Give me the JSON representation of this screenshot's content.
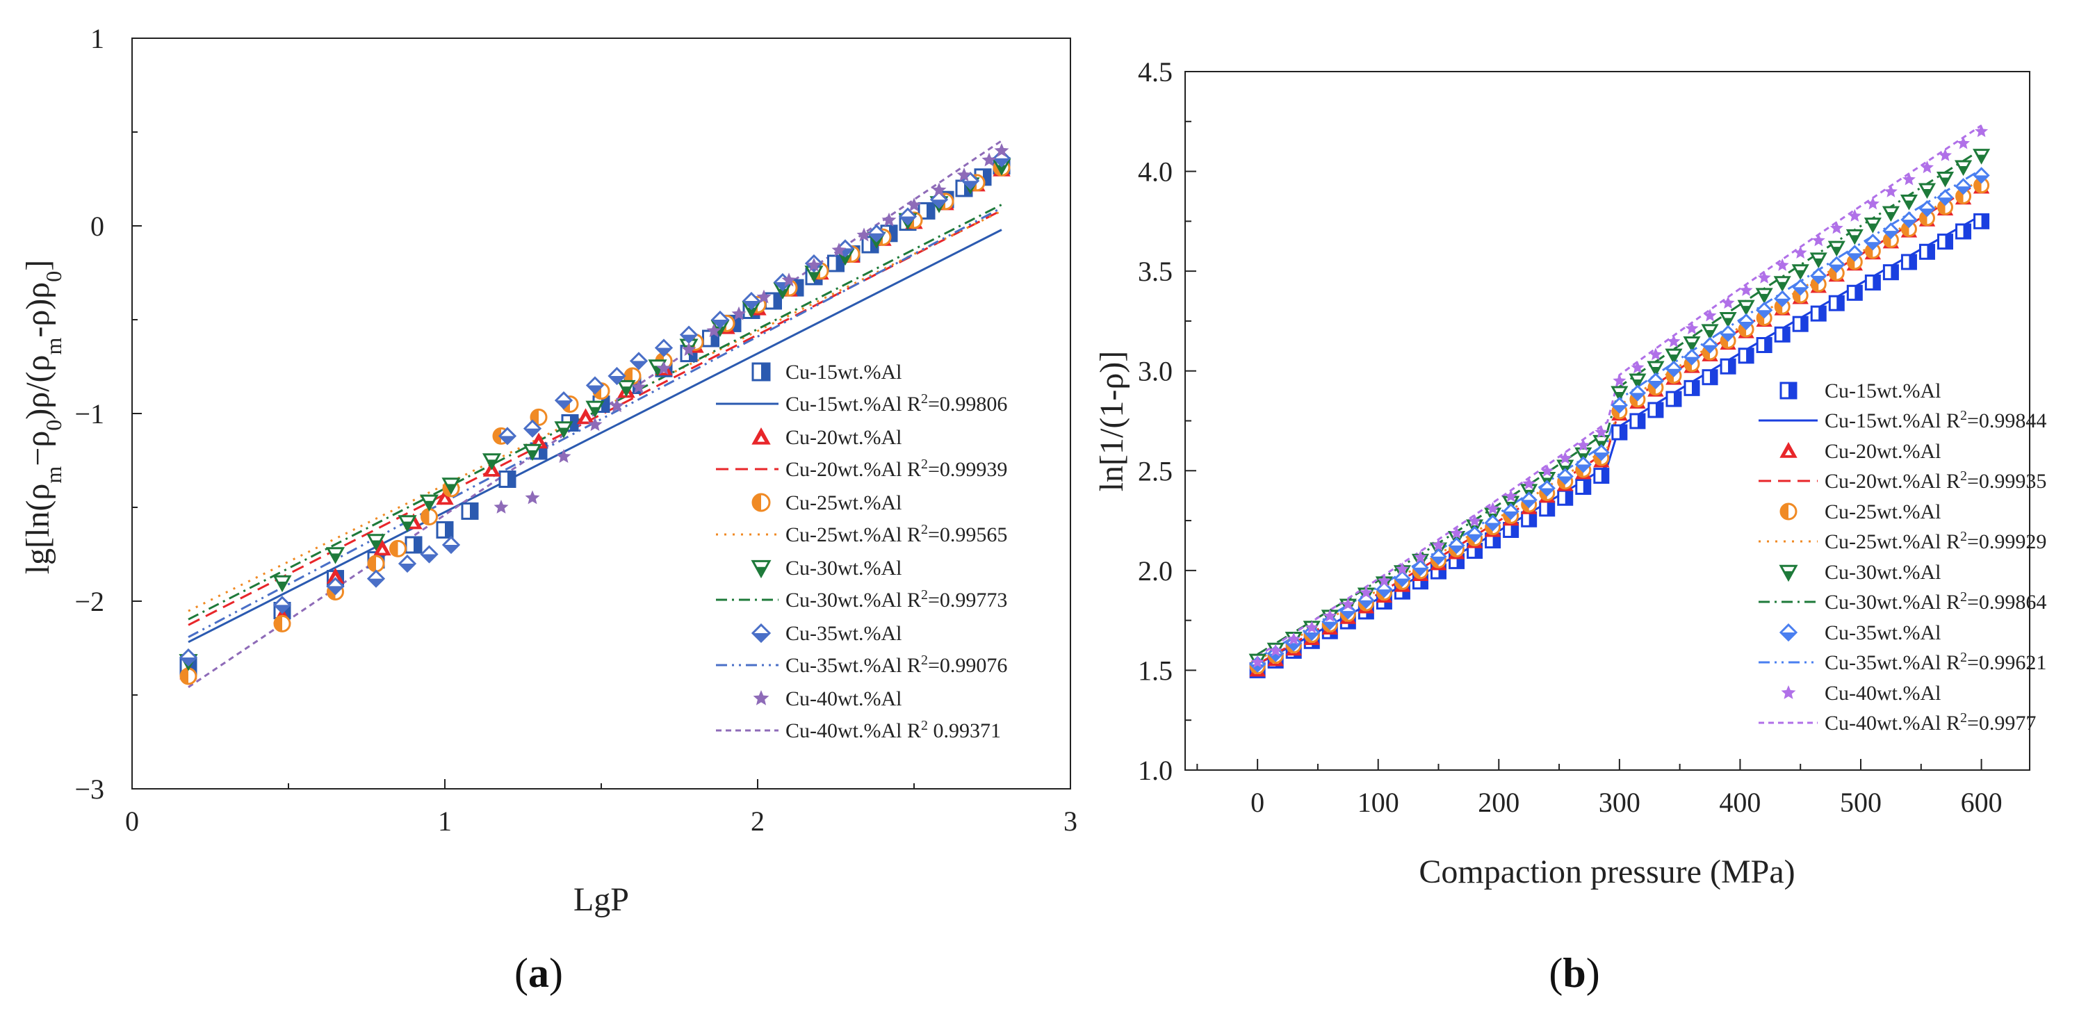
{
  "chart_data": [
    {
      "type": "scatter",
      "panel_label": "a",
      "xlabel": "LgP",
      "ylabel": "lg[ln(ρm−ρ0)ρ/(ρm-ρ)ρ0]",
      "xlim": [
        0,
        3
      ],
      "ylim": [
        -3,
        1
      ],
      "xticks": [
        0,
        1,
        2,
        3
      ],
      "xtick_labels": [
        "0",
        "1",
        "2",
        "3"
      ],
      "yticks": [
        -3,
        -2,
        -1,
        0,
        1
      ],
      "ytick_labels": [
        "−3",
        "−2",
        "−1",
        "0",
        "1"
      ],
      "legend_position": "lower-right",
      "series": [
        {
          "name": "Cu-15wt.%Al",
          "fit_label": "Cu-15wt.%Al R",
          "r2_sep": "=",
          "r2": "0.99806",
          "color": "#2b5ab0",
          "marker": "half-square",
          "dash": "",
          "slope": 0.845,
          "intercept": -2.37,
          "x_start": 0.18,
          "x_end": 2.78
        },
        {
          "name": "Cu-20wt.%Al",
          "fit_label": "Cu-20wt.%Al R",
          "r2_sep": "=",
          "r2": "0.99939",
          "color": "#e8262a",
          "marker": "triangle-up",
          "dash": "18,10",
          "slope": 0.85,
          "intercept": -2.28,
          "x_start": 0.18,
          "x_end": 2.78
        },
        {
          "name": "Cu-25wt.%Al",
          "fit_label": "Cu-25wt.%Al R",
          "r2_sep": "=",
          "r2": "0.99565",
          "color": "#f08a24",
          "marker": "half-circle",
          "dash": "3,9",
          "slope": 0.82,
          "intercept": -2.2,
          "x_start": 0.18,
          "x_end": 2.78
        },
        {
          "name": "Cu-30wt.%Al",
          "fit_label": "Cu-30wt.%Al R",
          "r2_sep": "=",
          "r2": "0.99773",
          "color": "#1e7a3a",
          "marker": "triangle-down",
          "dash": "16,7,3,7",
          "slope": 0.85,
          "intercept": -2.25,
          "x_start": 0.18,
          "x_end": 2.78
        },
        {
          "name": "Cu-35wt.%Al",
          "fit_label": "Cu-35wt.%Al R",
          "r2_sep": "=",
          "r2": "0.99076",
          "color": "#4a6fc7",
          "marker": "half-diamond",
          "dash": "16,7,3,7,3,7",
          "slope": 0.88,
          "intercept": -2.35,
          "x_start": 0.18,
          "x_end": 2.78
        },
        {
          "name": "Cu-40wt.%Al",
          "fit_label": "Cu-40wt.%Al R",
          "r2_sep": "  ",
          "r2": "0.99371",
          "color": "#8e6bb8",
          "marker": "star",
          "dash": "8,6",
          "slope": 1.12,
          "intercept": -2.66,
          "x_start": 0.18,
          "x_end": 2.78
        }
      ],
      "points": {
        "Cu-15wt.%Al": [
          [
            0.18,
            -2.35
          ],
          [
            0.48,
            -2.05
          ],
          [
            0.65,
            -1.88
          ],
          [
            0.78,
            -1.78
          ],
          [
            0.9,
            -1.7
          ],
          [
            1.0,
            -1.62
          ],
          [
            1.08,
            -1.52
          ],
          [
            1.2,
            -1.35
          ],
          [
            1.3,
            -1.2
          ],
          [
            1.4,
            -1.05
          ],
          [
            1.5,
            -0.95
          ],
          [
            1.6,
            -0.85
          ],
          [
            1.7,
            -0.76
          ],
          [
            1.78,
            -0.68
          ],
          [
            1.85,
            -0.6
          ],
          [
            1.92,
            -0.52
          ],
          [
            1.98,
            -0.45
          ],
          [
            2.05,
            -0.4
          ],
          [
            2.12,
            -0.33
          ],
          [
            2.18,
            -0.27
          ],
          [
            2.25,
            -0.2
          ],
          [
            2.3,
            -0.15
          ],
          [
            2.36,
            -0.1
          ],
          [
            2.42,
            -0.04
          ],
          [
            2.48,
            0.02
          ],
          [
            2.54,
            0.08
          ],
          [
            2.6,
            0.14
          ],
          [
            2.66,
            0.2
          ],
          [
            2.72,
            0.26
          ],
          [
            2.78,
            0.32
          ]
        ],
        "Cu-20wt.%Al": [
          [
            0.18,
            -2.38
          ],
          [
            0.48,
            -2.08
          ],
          [
            0.65,
            -1.87
          ],
          [
            0.8,
            -1.72
          ],
          [
            0.9,
            -1.58
          ],
          [
            1.0,
            -1.45
          ],
          [
            1.15,
            -1.3
          ],
          [
            1.3,
            -1.15
          ],
          [
            1.45,
            -1.02
          ],
          [
            1.58,
            -0.88
          ],
          [
            1.7,
            -0.76
          ],
          [
            1.8,
            -0.64
          ],
          [
            1.9,
            -0.54
          ],
          [
            2.0,
            -0.44
          ],
          [
            2.1,
            -0.34
          ],
          [
            2.2,
            -0.25
          ],
          [
            2.3,
            -0.16
          ],
          [
            2.4,
            -0.07
          ],
          [
            2.5,
            0.02
          ],
          [
            2.6,
            0.12
          ],
          [
            2.7,
            0.22
          ],
          [
            2.78,
            0.3
          ]
        ],
        "Cu-25wt.%Al": [
          [
            0.18,
            -2.4
          ],
          [
            0.48,
            -2.12
          ],
          [
            0.65,
            -1.95
          ],
          [
            0.78,
            -1.8
          ],
          [
            0.85,
            -1.72
          ],
          [
            0.95,
            -1.55
          ],
          [
            1.02,
            -1.4
          ],
          [
            1.18,
            -1.12
          ],
          [
            1.3,
            -1.02
          ],
          [
            1.4,
            -0.95
          ],
          [
            1.5,
            -0.88
          ],
          [
            1.6,
            -0.8
          ],
          [
            1.7,
            -0.72
          ],
          [
            1.8,
            -0.62
          ],
          [
            1.9,
            -0.52
          ],
          [
            2.0,
            -0.42
          ],
          [
            2.1,
            -0.33
          ],
          [
            2.2,
            -0.24
          ],
          [
            2.3,
            -0.15
          ],
          [
            2.4,
            -0.06
          ],
          [
            2.5,
            0.03
          ],
          [
            2.6,
            0.13
          ],
          [
            2.7,
            0.23
          ],
          [
            2.78,
            0.31
          ]
        ],
        "Cu-30wt.%Al": [
          [
            0.18,
            -2.32
          ],
          [
            0.48,
            -1.9
          ],
          [
            0.65,
            -1.75
          ],
          [
            0.78,
            -1.68
          ],
          [
            0.88,
            -1.58
          ],
          [
            0.95,
            -1.47
          ],
          [
            1.02,
            -1.38
          ],
          [
            1.15,
            -1.25
          ],
          [
            1.28,
            -1.2
          ],
          [
            1.38,
            -1.08
          ],
          [
            1.48,
            -0.97
          ],
          [
            1.58,
            -0.86
          ],
          [
            1.68,
            -0.75
          ],
          [
            1.78,
            -0.64
          ],
          [
            1.88,
            -0.54
          ],
          [
            1.98,
            -0.44
          ],
          [
            2.08,
            -0.34
          ],
          [
            2.18,
            -0.25
          ],
          [
            2.28,
            -0.16
          ],
          [
            2.38,
            -0.07
          ],
          [
            2.48,
            0.03
          ],
          [
            2.58,
            0.12
          ],
          [
            2.68,
            0.22
          ],
          [
            2.78,
            0.32
          ]
        ],
        "Cu-35wt.%Al": [
          [
            0.18,
            -2.3
          ],
          [
            0.48,
            -2.02
          ],
          [
            0.65,
            -1.92
          ],
          [
            0.78,
            -1.88
          ],
          [
            0.88,
            -1.8
          ],
          [
            0.95,
            -1.75
          ],
          [
            1.02,
            -1.7
          ],
          [
            1.2,
            -1.12
          ],
          [
            1.28,
            -1.08
          ],
          [
            1.38,
            -0.93
          ],
          [
            1.48,
            -0.85
          ],
          [
            1.55,
            -0.8
          ],
          [
            1.62,
            -0.72
          ],
          [
            1.7,
            -0.65
          ],
          [
            1.78,
            -0.58
          ],
          [
            1.88,
            -0.5
          ],
          [
            1.98,
            -0.4
          ],
          [
            2.08,
            -0.3
          ],
          [
            2.18,
            -0.2
          ],
          [
            2.28,
            -0.12
          ],
          [
            2.38,
            -0.04
          ],
          [
            2.48,
            0.05
          ],
          [
            2.58,
            0.14
          ],
          [
            2.68,
            0.24
          ],
          [
            2.78,
            0.36
          ]
        ],
        "Cu-40wt.%Al": [
          [
            1.18,
            -1.5
          ],
          [
            1.28,
            -1.45
          ],
          [
            1.38,
            -1.23
          ],
          [
            1.48,
            -1.06
          ],
          [
            1.55,
            -0.96
          ],
          [
            1.62,
            -0.86
          ],
          [
            1.7,
            -0.76
          ],
          [
            1.78,
            -0.66
          ],
          [
            1.86,
            -0.56
          ],
          [
            1.94,
            -0.47
          ],
          [
            2.02,
            -0.38
          ],
          [
            2.1,
            -0.29
          ],
          [
            2.18,
            -0.21
          ],
          [
            2.26,
            -0.13
          ],
          [
            2.34,
            -0.05
          ],
          [
            2.42,
            0.03
          ],
          [
            2.5,
            0.11
          ],
          [
            2.58,
            0.19
          ],
          [
            2.66,
            0.27
          ],
          [
            2.74,
            0.35
          ],
          [
            2.78,
            0.4
          ]
        ]
      }
    },
    {
      "type": "scatter",
      "panel_label": "b",
      "xlabel": "Compaction pressure (MPa)",
      "ylabel": "ln[1/(1-ρ)]",
      "xlim": [
        -60,
        640
      ],
      "ylim": [
        1.0,
        4.5
      ],
      "xticks": [
        0,
        100,
        200,
        300,
        400,
        500,
        600
      ],
      "xtick_labels": [
        "0",
        "100",
        "200",
        "300",
        "400",
        "500",
        "600"
      ],
      "yticks": [
        1.0,
        1.5,
        2.0,
        2.5,
        3.0,
        3.5,
        4.0,
        4.5
      ],
      "ytick_labels": [
        "1.0",
        "1.5",
        "2.0",
        "2.5",
        "3.0",
        "3.5",
        "4.0",
        "4.5"
      ],
      "legend_position": "lower-right",
      "series": [
        {
          "name": "Cu-15wt.%Al",
          "fit_label": "Cu-15wt.%Al R",
          "r2_sep": "=",
          "r2": "0.99844",
          "color": "#1a3fe0",
          "marker": "half-square",
          "dash": "",
          "y0": 1.5,
          "y_end": 3.75
        },
        {
          "name": "Cu-20wt.%Al",
          "fit_label": "Cu-20wt.%Al R",
          "r2_sep": "=",
          "r2": "0.99935",
          "color": "#e8262a",
          "marker": "triangle-up",
          "dash": "18,10",
          "y0": 1.5,
          "y_end": 3.92
        },
        {
          "name": "Cu-25wt.%Al",
          "fit_label": "Cu-25wt.%Al R",
          "r2_sep": "=",
          "r2": "0.99929",
          "color": "#f08a24",
          "marker": "half-circle",
          "dash": "3,9",
          "y0": 1.52,
          "y_end": 3.93
        },
        {
          "name": "Cu-30wt.%Al",
          "fit_label": "Cu-30wt.%Al R",
          "r2_sep": "=",
          "r2": "0.99864",
          "color": "#1e7a3a",
          "marker": "triangle-down",
          "dash": "16,7,3,7",
          "y0": 1.55,
          "y_end": 4.08
        },
        {
          "name": "Cu-35wt.%Al",
          "fit_label": "Cu-35wt.%Al R",
          "r2_sep": "=",
          "r2": "0.99621",
          "color": "#4a7ff0",
          "marker": "half-diamond",
          "dash": "16,7,3,7,3,7",
          "y0": 1.53,
          "y_end": 3.98
        },
        {
          "name": "Cu-40wt.%Al",
          "fit_label": "Cu-40wt.%Al R",
          "r2_sep": "=",
          "r2": "0.9977",
          "color": "#b070e8",
          "marker": "star",
          "dash": "8,6",
          "y0": 1.54,
          "y_end": 4.2
        }
      ]
    }
  ]
}
